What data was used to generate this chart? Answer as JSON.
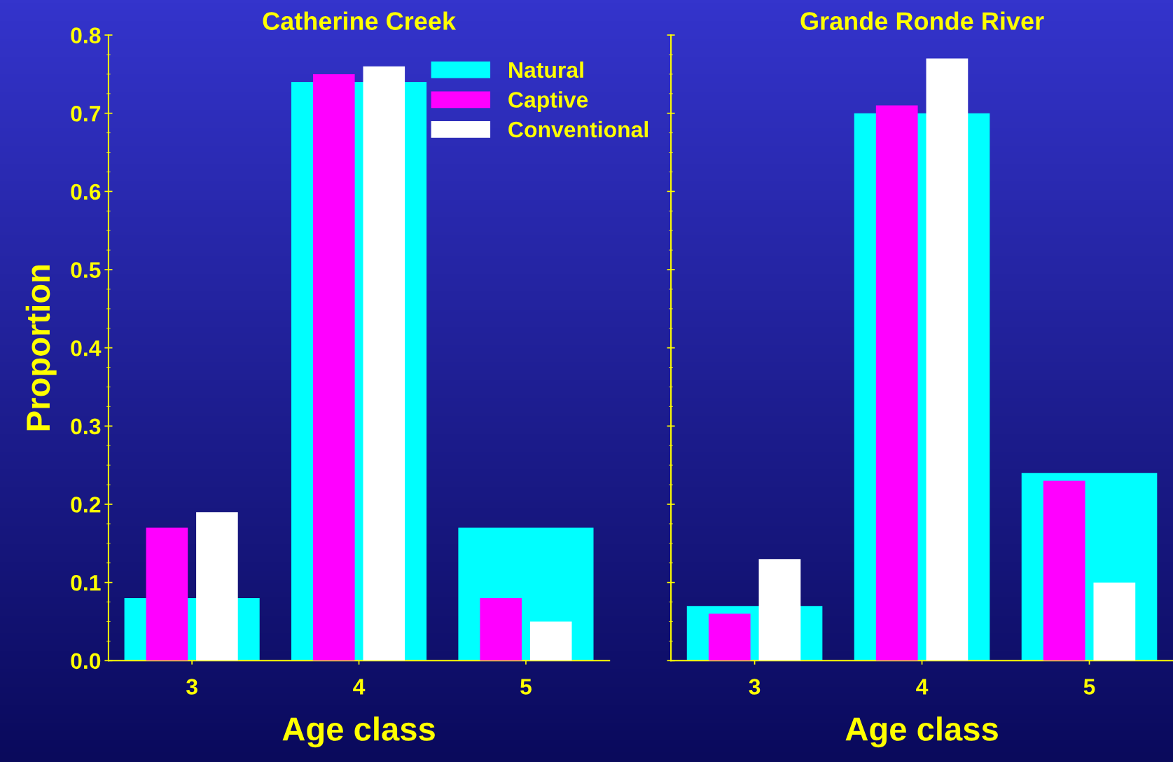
{
  "chart_data": [
    {
      "type": "bar",
      "title": "Catherine Creek",
      "xlabel": "Age class",
      "ylabel": "Proportion",
      "categories": [
        "3",
        "4",
        "5"
      ],
      "ylim": [
        0,
        0.8
      ],
      "yticks": [
        {
          "value": 0,
          "label": "0.0"
        },
        0.1,
        0.2,
        0.3,
        0.4,
        0.5,
        0.6,
        0.7,
        0.8
      ],
      "legend": "top right",
      "series": [
        {
          "name": "Natural",
          "color": "#00ffff",
          "values": [
            0.08,
            0.74,
            0.17
          ]
        },
        {
          "name": "Captive",
          "color": "#ff00ff",
          "values": [
            0.17,
            0.75,
            0.08
          ]
        },
        {
          "name": "Conventional",
          "color": "#ffffff",
          "values": [
            0.19,
            0.76,
            0.05
          ]
        }
      ]
    },
    {
      "type": "bar",
      "title": "Grande Ronde River",
      "xlabel": "Age class",
      "categories": [
        "3",
        "4",
        "5"
      ],
      "ylim": [
        0,
        0.8
      ],
      "yticks": [
        {
          "value": 0,
          "label": null
        },
        {
          "value": 0.1,
          "label": null
        },
        {
          "value": 0.2,
          "label": null
        },
        {
          "value": 0.3,
          "label": null
        },
        {
          "value": 0.4,
          "label": null
        },
        {
          "value": 0.5,
          "label": null
        },
        {
          "value": 0.6,
          "label": null
        },
        {
          "value": 0.7,
          "label": null
        },
        {
          "value": 0.8,
          "label": null
        }
      ],
      "tick_labels": "x",
      "series": [
        {
          "color": "#00ffff",
          "values": [
            0.07,
            0.7,
            0.24
          ]
        },
        {
          "color": "#ff00ff",
          "values": [
            0.06,
            0.71,
            0.23
          ]
        },
        {
          "color": "#ffffff",
          "values": [
            0.13,
            0.77,
            0.1
          ]
        }
      ]
    }
  ]
}
